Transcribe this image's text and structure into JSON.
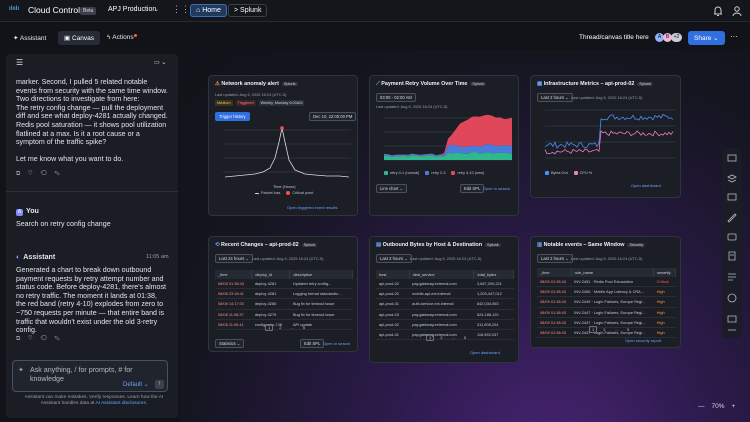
{
  "topbar": {
    "product": "Cloud Control",
    "badge": "Beta",
    "environment": "APJ Production",
    "tabs": [
      "Home",
      "Splunk"
    ]
  },
  "toolbar": {
    "tabs": [
      "Assistant",
      "Canvas",
      "Actions"
    ],
    "thread_title": "Thread/canvas title here",
    "avatars": [
      "A",
      "B",
      "+2"
    ],
    "share": "Share"
  },
  "chat": {
    "first": {
      "lines": [
        "marker. Second, I pulled 5 related notable events from security with the same time window.",
        "Two directions to investigate from here:",
        "The retry config change — pull the deployment diff and see what deploy-4281 actually changed.",
        "Redis pool saturation — it shows pool utilization flatlined at a max. Is it a root cause or a symptom of the traffic spike?"
      ],
      "closing": "Let me know what you want to do."
    },
    "user": {
      "author": "You",
      "text": "Search on retry config change"
    },
    "assistant": {
      "author": "Assistant",
      "time": "11:05 am",
      "text": "Generated a chart to break down outbound payment requests by retry attempt number and status code. Before deploy-4281, there's almost no retry traffic. The moment it lands at 01:38, the red band (retry 4-10) explodes from zero to ~750 requests per minute — that entire band is traffic that wouldn't exist under the old 3-retry config."
    },
    "input_placeholder": "Ask anything, / for prompts, # for knowledge",
    "mode": "Default",
    "disclaimer": "Assistant can make mistakes. Verify responses. Learn how the AI Assistant handles data at",
    "disclaimer_link": "AI Assistant disclosures."
  },
  "cards": [
    {
      "title": "Network anomaly alert",
      "badge": "Splunk",
      "updated": "Last updated: Aug 6, 2025 16:24 (UTC-5)",
      "chips": [
        "Medium",
        "Triggered",
        "Weekly, Monday 6:00AM"
      ],
      "button": "Trigger history",
      "range": "Dec 10, 22:05:00 PM",
      "x_label": "Time (Hours)",
      "legend": [
        "Packet loss",
        "Critical point"
      ],
      "link": "Open triggered event results"
    },
    {
      "title": "Payment Retry Volume Over Time",
      "badge": "Splunk",
      "filter": "03:00 - 02:00 AM",
      "updated": "Last updated: Aug 6, 2025 16:24 (UTC-5)",
      "legend": [
        "retry 0-1 (normal)",
        "retry 2-3",
        "retry 4-10 (new)"
      ],
      "viz": "Line chart",
      "button": "Edit SPL",
      "link": "Open in search"
    },
    {
      "title": "Infrastructure Metrics – api-prod-02",
      "badge": "Splunk",
      "filter": "Last 2 hours",
      "updated": "Last updated: Aug 6, 2025 16:24 (UTC-5)",
      "legend": [
        "Bytes Out",
        "CPU %"
      ],
      "link": "Open dashboard"
    },
    {
      "title": "Recent Changes – api-prod-02",
      "badge": "Splunk",
      "filter": "Last 24 hours",
      "updated": "Last updated: Aug 6, 2025 16:24 (UTC-5)",
      "table": {
        "columns": [
          "_time",
          "deploy_id",
          "description"
        ],
        "rows": [
          [
            "08/09 01:38:43",
            "deploy-4281",
            "Updated retry config..."
          ],
          [
            "08/08 23:18:41",
            "deploy-4281",
            "Logging format standardiz..."
          ],
          [
            "08/08 14:17:00",
            "deploy-4280",
            "Bug fix for timeout issue"
          ],
          [
            "08/08 11:08:37",
            "deploy-4279",
            "Bug fix for timeout issue"
          ],
          [
            "08/08 11:06:41",
            "config-auto-748",
            "API update"
          ]
        ]
      },
      "pages": [
        "1",
        "2",
        "...",
        "5"
      ],
      "viz": "Statistics",
      "button": "Edit SPL",
      "link": "Open in search"
    },
    {
      "title": "Outbound Bytes by Host & Destination",
      "badge": "Splunk",
      "filter": "Last 2 hours",
      "updated": "Last updated: Aug 6, 2025 16:24 (UTC-5)",
      "table": {
        "columns": [
          "host",
          "dest_service",
          "total_bytes"
        ],
        "rows": [
          [
            "api-prod-02",
            "pay.gateway.external.com",
            "3,847,290,221"
          ],
          [
            "api-prod-02",
            "mobile-api-ext.internal",
            "1,203,447,012"
          ],
          [
            "api-prod-01",
            "auth-service.ext.internal",
            "842,034,553"
          ],
          [
            "api-prod-03",
            "pay.gateway.external.com",
            "524,188,120"
          ],
          [
            "api-prod-02",
            "pay.gateway.external.com",
            "311,908,204"
          ],
          [
            "api-prod-01",
            "pay.gateway.external.com",
            "118,992,037"
          ]
        ]
      },
      "pages": [
        "1",
        "2",
        "...",
        "5"
      ],
      "link": "Open dashboard"
    },
    {
      "title": "Notable events – Same Window",
      "badge": "Security",
      "filter": "Last 2 hours",
      "updated": "Last updated: Aug 6, 2025 16:24 (UTC-5)",
      "table": {
        "columns": [
          "_time",
          "rule_name",
          "severity"
        ],
        "rows": [
          [
            "08/09 01:38:43",
            "INV-2451 · Redis Pool Exhaustion",
            "Critical"
          ],
          [
            "08/09 01:38:43",
            "INV-2450 · Mobile App Latency & CRA...",
            "High"
          ],
          [
            "08/09 01:38:43",
            "INV-2449 · Login Failures, Europe Regi...",
            "High"
          ],
          [
            "08/09 01:38:43",
            "INV-2447 · Login Failures, Europe Regi...",
            "High"
          ],
          [
            "08/09 01:38:43",
            "INV-2447 · Login Failures, Europe Regi...",
            "High"
          ],
          [
            "08/09 01:38:43",
            "INV-2447 · Login Failures, Europe Regi...",
            "High"
          ]
        ]
      },
      "pages": [
        "1",
        "2",
        "...",
        "5"
      ],
      "link": "Open security report"
    }
  ],
  "zoom": "70%"
}
